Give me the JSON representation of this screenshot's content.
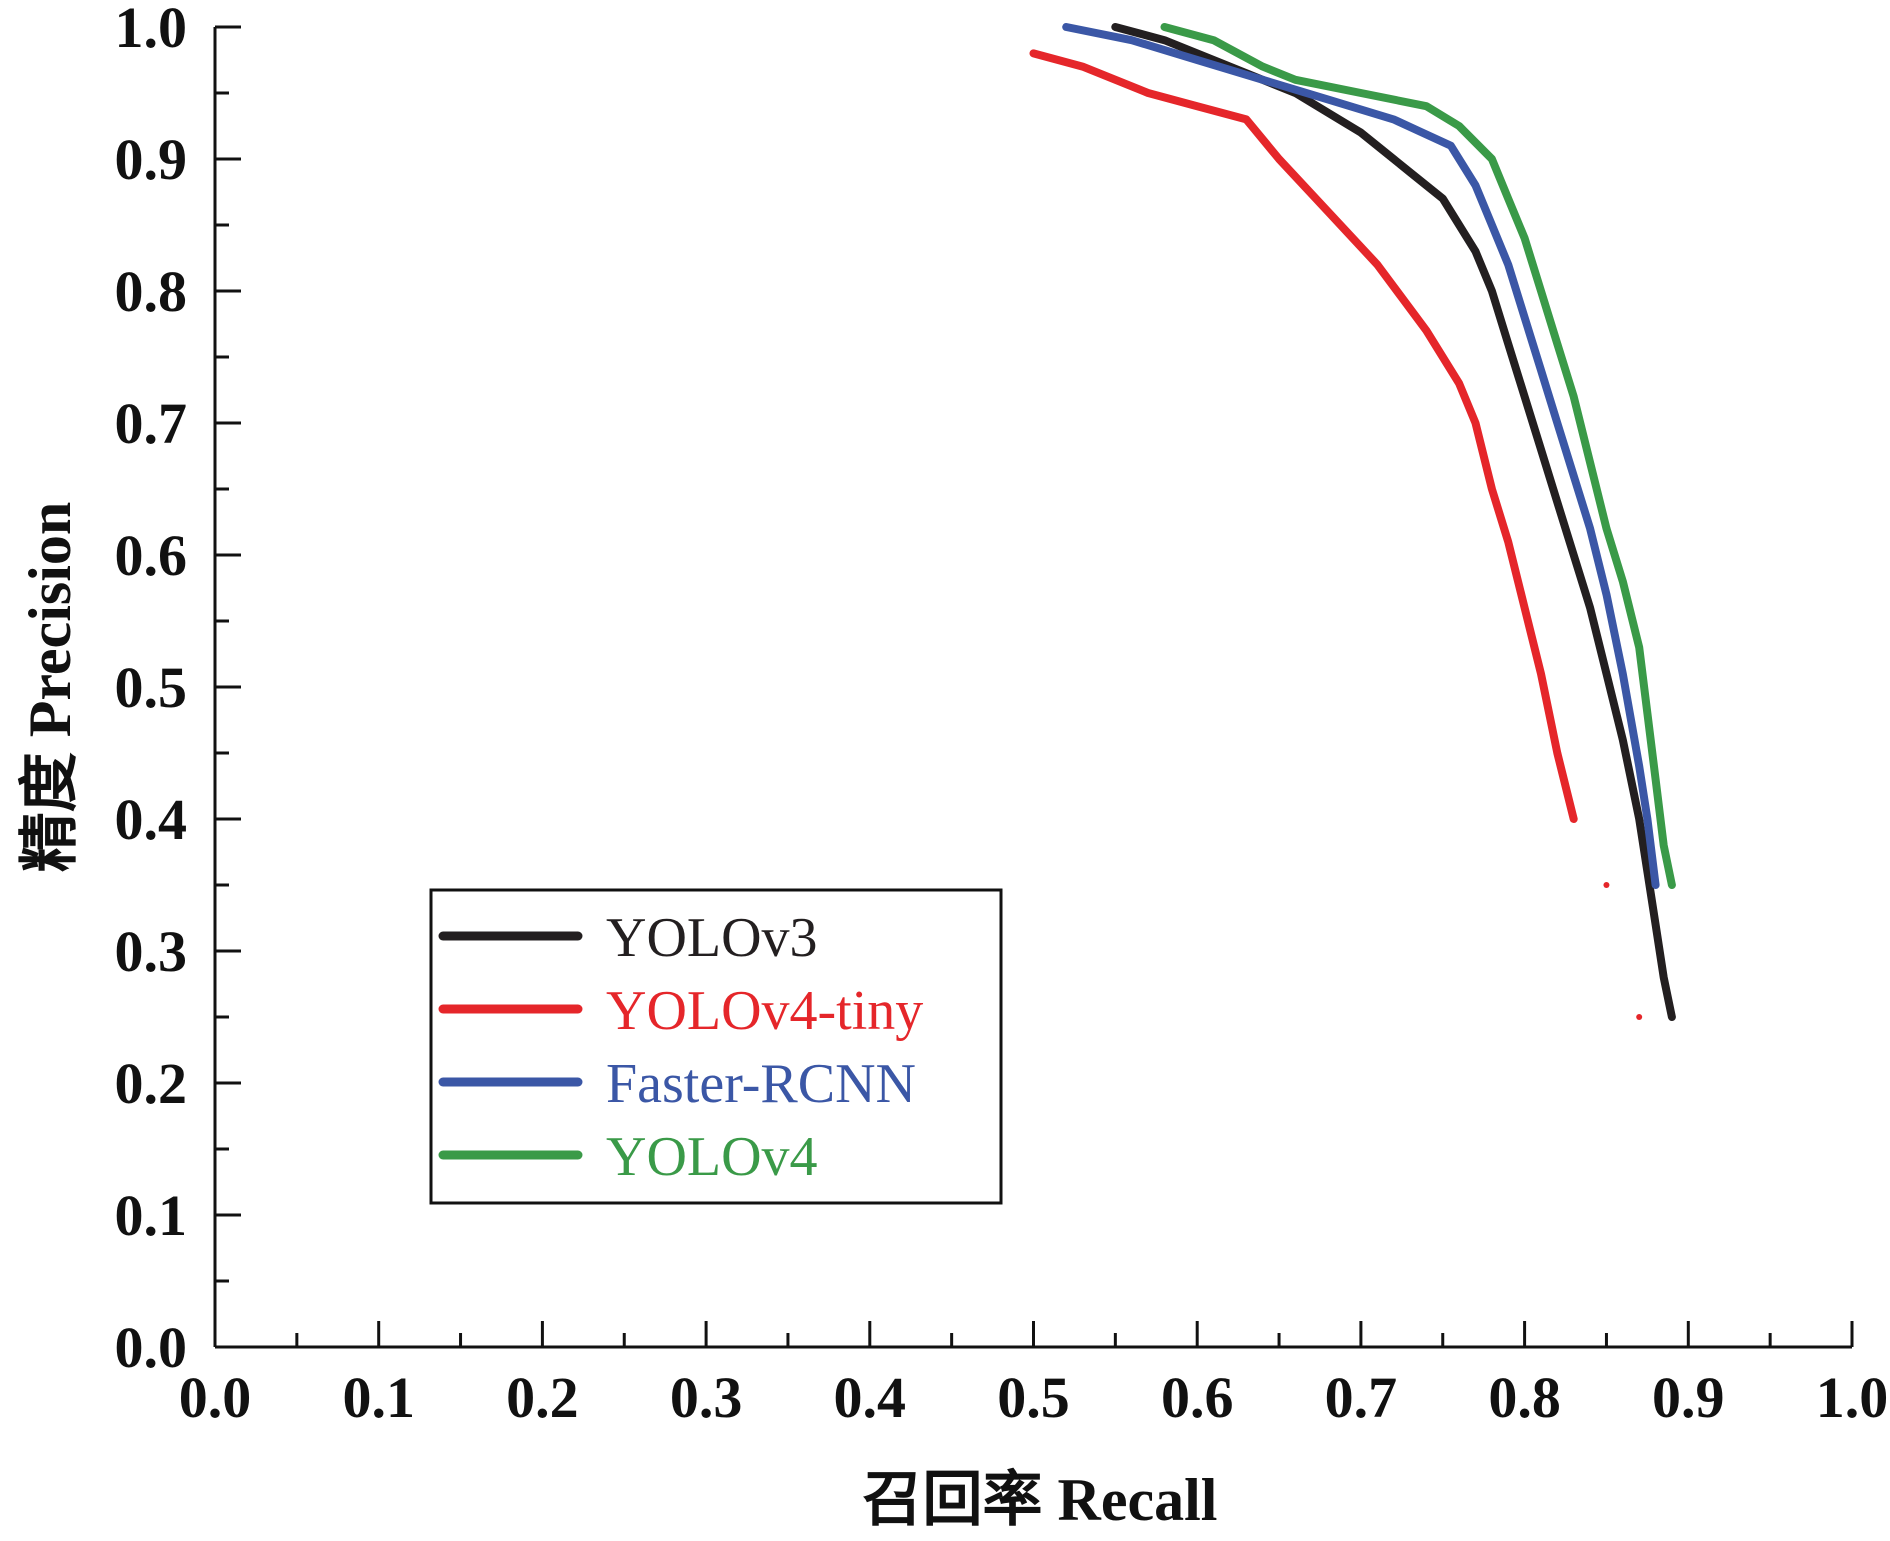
{
  "chart_data": {
    "type": "line",
    "title": "",
    "xlabel": "召回率  Recall",
    "ylabel": "精度  Precision",
    "xlim": [
      0.0,
      1.0
    ],
    "ylim": [
      0.0,
      1.0
    ],
    "xticks": [
      0.0,
      0.1,
      0.2,
      0.3,
      0.4,
      0.5,
      0.6,
      0.7,
      0.8,
      0.9,
      1.0
    ],
    "yticks": [
      0.0,
      0.1,
      0.2,
      0.3,
      0.4,
      0.5,
      0.6,
      0.7,
      0.8,
      0.9,
      1.0
    ],
    "xtick_labels": [
      "0.0",
      "0.1",
      "0.2",
      "0.3",
      "0.4",
      "0.5",
      "0.6",
      "0.7",
      "0.8",
      "0.9",
      "1.0"
    ],
    "ytick_labels": [
      "0.0",
      "0.1",
      "0.2",
      "0.3",
      "0.4",
      "0.5",
      "0.6",
      "0.7",
      "0.8",
      "0.9",
      "1.0"
    ],
    "grid": false,
    "legend_position": "lower-left",
    "series": [
      {
        "name": "YOLOv3",
        "color": "#231f20",
        "points": [
          [
            0.55,
            1.0
          ],
          [
            0.58,
            0.99
          ],
          [
            0.62,
            0.97
          ],
          [
            0.66,
            0.95
          ],
          [
            0.7,
            0.92
          ],
          [
            0.73,
            0.89
          ],
          [
            0.75,
            0.87
          ],
          [
            0.77,
            0.83
          ],
          [
            0.78,
            0.8
          ],
          [
            0.79,
            0.76
          ],
          [
            0.8,
            0.72
          ],
          [
            0.81,
            0.68
          ],
          [
            0.82,
            0.64
          ],
          [
            0.83,
            0.6
          ],
          [
            0.84,
            0.56
          ],
          [
            0.85,
            0.51
          ],
          [
            0.86,
            0.46
          ],
          [
            0.87,
            0.4
          ],
          [
            0.875,
            0.36
          ],
          [
            0.88,
            0.32
          ],
          [
            0.885,
            0.28
          ],
          [
            0.89,
            0.25
          ]
        ]
      },
      {
        "name": "YOLOv4-tiny",
        "color": "#e5262a",
        "points": [
          [
            0.5,
            0.98
          ],
          [
            0.53,
            0.97
          ],
          [
            0.57,
            0.95
          ],
          [
            0.6,
            0.94
          ],
          [
            0.63,
            0.93
          ],
          [
            0.65,
            0.9
          ],
          [
            0.68,
            0.86
          ],
          [
            0.71,
            0.82
          ],
          [
            0.74,
            0.77
          ],
          [
            0.76,
            0.73
          ],
          [
            0.77,
            0.7
          ],
          [
            0.78,
            0.65
          ],
          [
            0.79,
            0.61
          ],
          [
            0.8,
            0.56
          ],
          [
            0.81,
            0.51
          ],
          [
            0.82,
            0.45
          ],
          [
            0.83,
            0.4
          ]
        ]
      },
      {
        "name": "Faster-RCNN",
        "color": "#3b57a6",
        "points": [
          [
            0.52,
            1.0
          ],
          [
            0.56,
            0.99
          ],
          [
            0.6,
            0.975
          ],
          [
            0.64,
            0.96
          ],
          [
            0.68,
            0.945
          ],
          [
            0.72,
            0.93
          ],
          [
            0.755,
            0.91
          ],
          [
            0.77,
            0.88
          ],
          [
            0.78,
            0.85
          ],
          [
            0.79,
            0.82
          ],
          [
            0.8,
            0.78
          ],
          [
            0.81,
            0.74
          ],
          [
            0.82,
            0.7
          ],
          [
            0.83,
            0.66
          ],
          [
            0.84,
            0.62
          ],
          [
            0.85,
            0.57
          ],
          [
            0.86,
            0.51
          ],
          [
            0.87,
            0.44
          ],
          [
            0.875,
            0.4
          ],
          [
            0.88,
            0.35
          ]
        ]
      },
      {
        "name": "YOLOv4",
        "color": "#3a9a48",
        "points": [
          [
            0.58,
            1.0
          ],
          [
            0.61,
            0.99
          ],
          [
            0.64,
            0.97
          ],
          [
            0.66,
            0.96
          ],
          [
            0.7,
            0.95
          ],
          [
            0.74,
            0.94
          ],
          [
            0.76,
            0.925
          ],
          [
            0.78,
            0.9
          ],
          [
            0.79,
            0.87
          ],
          [
            0.8,
            0.84
          ],
          [
            0.81,
            0.8
          ],
          [
            0.82,
            0.76
          ],
          [
            0.83,
            0.72
          ],
          [
            0.84,
            0.67
          ],
          [
            0.85,
            0.62
          ],
          [
            0.86,
            0.58
          ],
          [
            0.87,
            0.53
          ],
          [
            0.875,
            0.48
          ],
          [
            0.88,
            0.43
          ],
          [
            0.885,
            0.38
          ],
          [
            0.89,
            0.35
          ]
        ]
      }
    ],
    "stray_points": [
      {
        "color": "#e5262a",
        "x": 0.85,
        "y": 0.35
      },
      {
        "color": "#e5262a",
        "x": 0.87,
        "y": 0.25
      }
    ]
  }
}
